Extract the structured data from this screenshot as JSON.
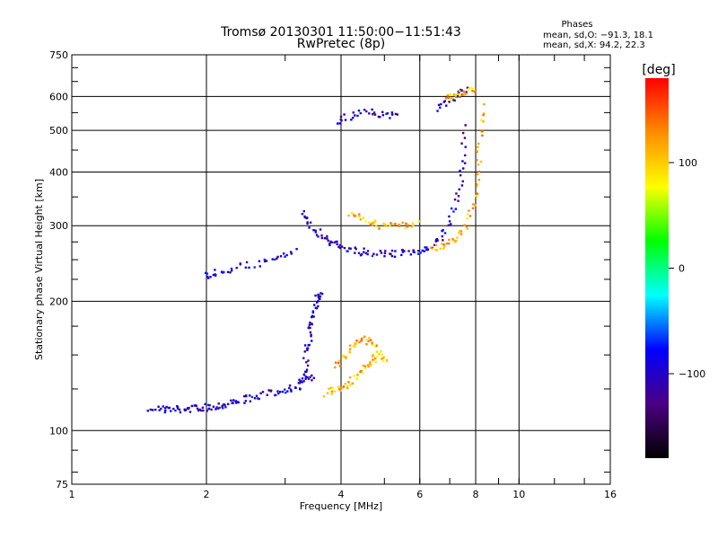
{
  "chart_data": {
    "type": "scatter",
    "title": "Tromsø 20130301 11:50:00−11:51:43",
    "subtitle": "RwPretec (8p)",
    "xlabel": "Frequency [MHz]",
    "ylabel": "Stationary phase Virtual Height [km]",
    "x_scale": "log",
    "y_scale": "log",
    "xlim": [
      1,
      16
    ],
    "ylim": [
      75,
      750
    ],
    "x_ticks": [
      1,
      2,
      4,
      6,
      8,
      10,
      16
    ],
    "x_tick_labels": [
      "1",
      "2",
      "4",
      "6",
      "8",
      "10",
      "16"
    ],
    "y_ticks": [
      75,
      100,
      200,
      300,
      400,
      500,
      600,
      750
    ],
    "y_tick_labels": [
      "75",
      "100",
      "200",
      "300",
      "400",
      "500",
      "600",
      "750"
    ],
    "grid": true,
    "legend": {
      "heading": "Phases",
      "lines": [
        "mean, sd,O: −91.3, 18.1",
        "mean, sd,X:  94.2, 22.3"
      ]
    },
    "colorbar": {
      "label": "[deg]",
      "range": [
        -180,
        180
      ],
      "ticks": [
        100,
        0,
        -100
      ],
      "tick_labels": [
        "100",
        "0",
        "−100"
      ],
      "colors": [
        "#000000",
        "#4b0082",
        "#0000ff",
        "#00ffff",
        "#00ff00",
        "#ffff00",
        "#ff8c00",
        "#ff0000"
      ]
    },
    "series": [
      {
        "traces": [
          {
            "x": [
              1.5,
              1.6,
              1.7,
              1.8,
              1.9,
              2.0,
              2.1,
              2.2,
              2.35,
              2.5,
              2.7,
              2.9,
              3.1,
              3.3,
              3.5
            ],
            "y": [
              113,
              112,
              112,
              112,
              113,
              113,
              114,
              115,
              117,
              119,
              121,
              123,
              126,
              130,
              134
            ]
          },
          {
            "x": [
              3.2,
              3.3,
              3.35,
              3.4,
              3.45,
              3.5,
              3.55,
              3.6
            ],
            "y": [
              125,
              135,
              150,
              165,
              180,
              195,
              205,
              210
            ]
          },
          {
            "x": [
              3.3,
              3.4,
              3.6,
              3.8,
              4.0,
              4.3,
              4.6,
              5.0,
              5.4,
              5.8,
              6.2,
              6.6,
              7.0,
              7.3,
              7.5,
              7.6
            ],
            "y": [
              320,
              300,
              285,
              275,
              268,
              262,
              260,
              258,
              258,
              260,
              265,
              275,
              300,
              350,
              420,
              520
            ]
          },
          {
            "x": [
              3.9,
              4.2,
              4.6,
              5.0,
              5.4
            ],
            "y": [
              520,
              540,
              550,
              545,
              540
            ]
          },
          {
            "x": [
              6.5,
              7.0,
              7.4,
              7.6
            ],
            "y": [
              560,
              590,
              610,
              620
            ]
          },
          {
            "x": [
              2.0,
              2.1,
              2.3,
              2.6,
              2.9,
              3.2
            ],
            "y": [
              230,
              233,
              238,
              245,
              252,
              262
            ]
          }
        ],
        "color_phase": -100
      },
      {
        "traces": [
          {
            "x": [
              3.7,
              3.9,
              4.1,
              4.3,
              4.5,
              4.7,
              4.8
            ],
            "y": [
              122,
              125,
              128,
              132,
              140,
              145,
              150
            ]
          },
          {
            "x": [
              3.9,
              4.1,
              4.3,
              4.5,
              4.7,
              4.9,
              5.1
            ],
            "y": [
              140,
              150,
              158,
              165,
              160,
              150,
              142
            ]
          },
          {
            "x": [
              4.2,
              4.5,
              4.8,
              5.1,
              5.5,
              6.0
            ],
            "y": [
              320,
              310,
              302,
              298,
              300,
              305
            ]
          },
          {
            "x": [
              6.4,
              6.8,
              7.2,
              7.6,
              7.9,
              8.1,
              8.2,
              8.3
            ],
            "y": [
              265,
              270,
              280,
              300,
              340,
              400,
              480,
              580
            ]
          },
          {
            "x": [
              6.8,
              7.2,
              7.6,
              8.0
            ],
            "y": [
              590,
              605,
              615,
              625
            ]
          }
        ],
        "color_phase": 110
      }
    ]
  }
}
